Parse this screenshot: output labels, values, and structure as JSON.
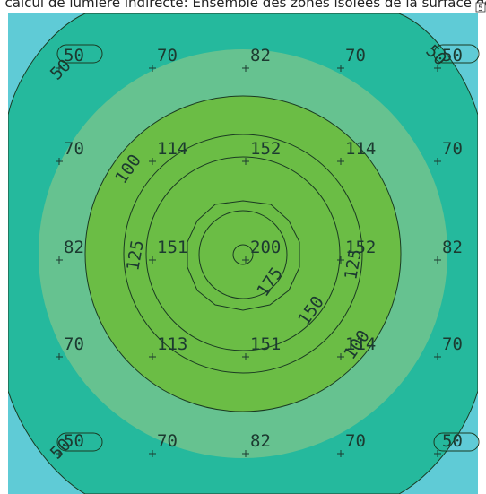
{
  "header": {
    "title": "Résultats de calcul de lumière indirecte: Ensemble des zones isolées de la surface de travail, lux",
    "corner_glyph": "5"
  },
  "colors": {
    "band_50": "#5fcbd6",
    "band_70": "#25b99d",
    "band_100": "#66c290",
    "band_125": "#6bbd45",
    "line": "#1a3a22",
    "text": "#1c3a30"
  },
  "isolines": [
    "50",
    "100",
    "125",
    "150",
    "175"
  ],
  "isoline_labels": [
    {
      "text": "50"
    },
    {
      "text": "50"
    },
    {
      "text": "50"
    },
    {
      "text": "100"
    },
    {
      "text": "125"
    },
    {
      "text": "125"
    },
    {
      "text": "175"
    },
    {
      "text": "150"
    },
    {
      "text": "100"
    }
  ],
  "grid": [
    {
      "row": 0,
      "values": [
        "50",
        "70",
        "82",
        "70",
        "50"
      ]
    },
    {
      "row": 1,
      "values": [
        "70",
        "114",
        "152",
        "114",
        "70"
      ]
    },
    {
      "row": 2,
      "values": [
        "82",
        "151",
        "200",
        "152",
        "82"
      ]
    },
    {
      "row": 3,
      "values": [
        "70",
        "113",
        "151",
        "114",
        "70"
      ]
    },
    {
      "row": 4,
      "values": [
        "50",
        "70",
        "82",
        "70",
        "50"
      ]
    }
  ]
}
